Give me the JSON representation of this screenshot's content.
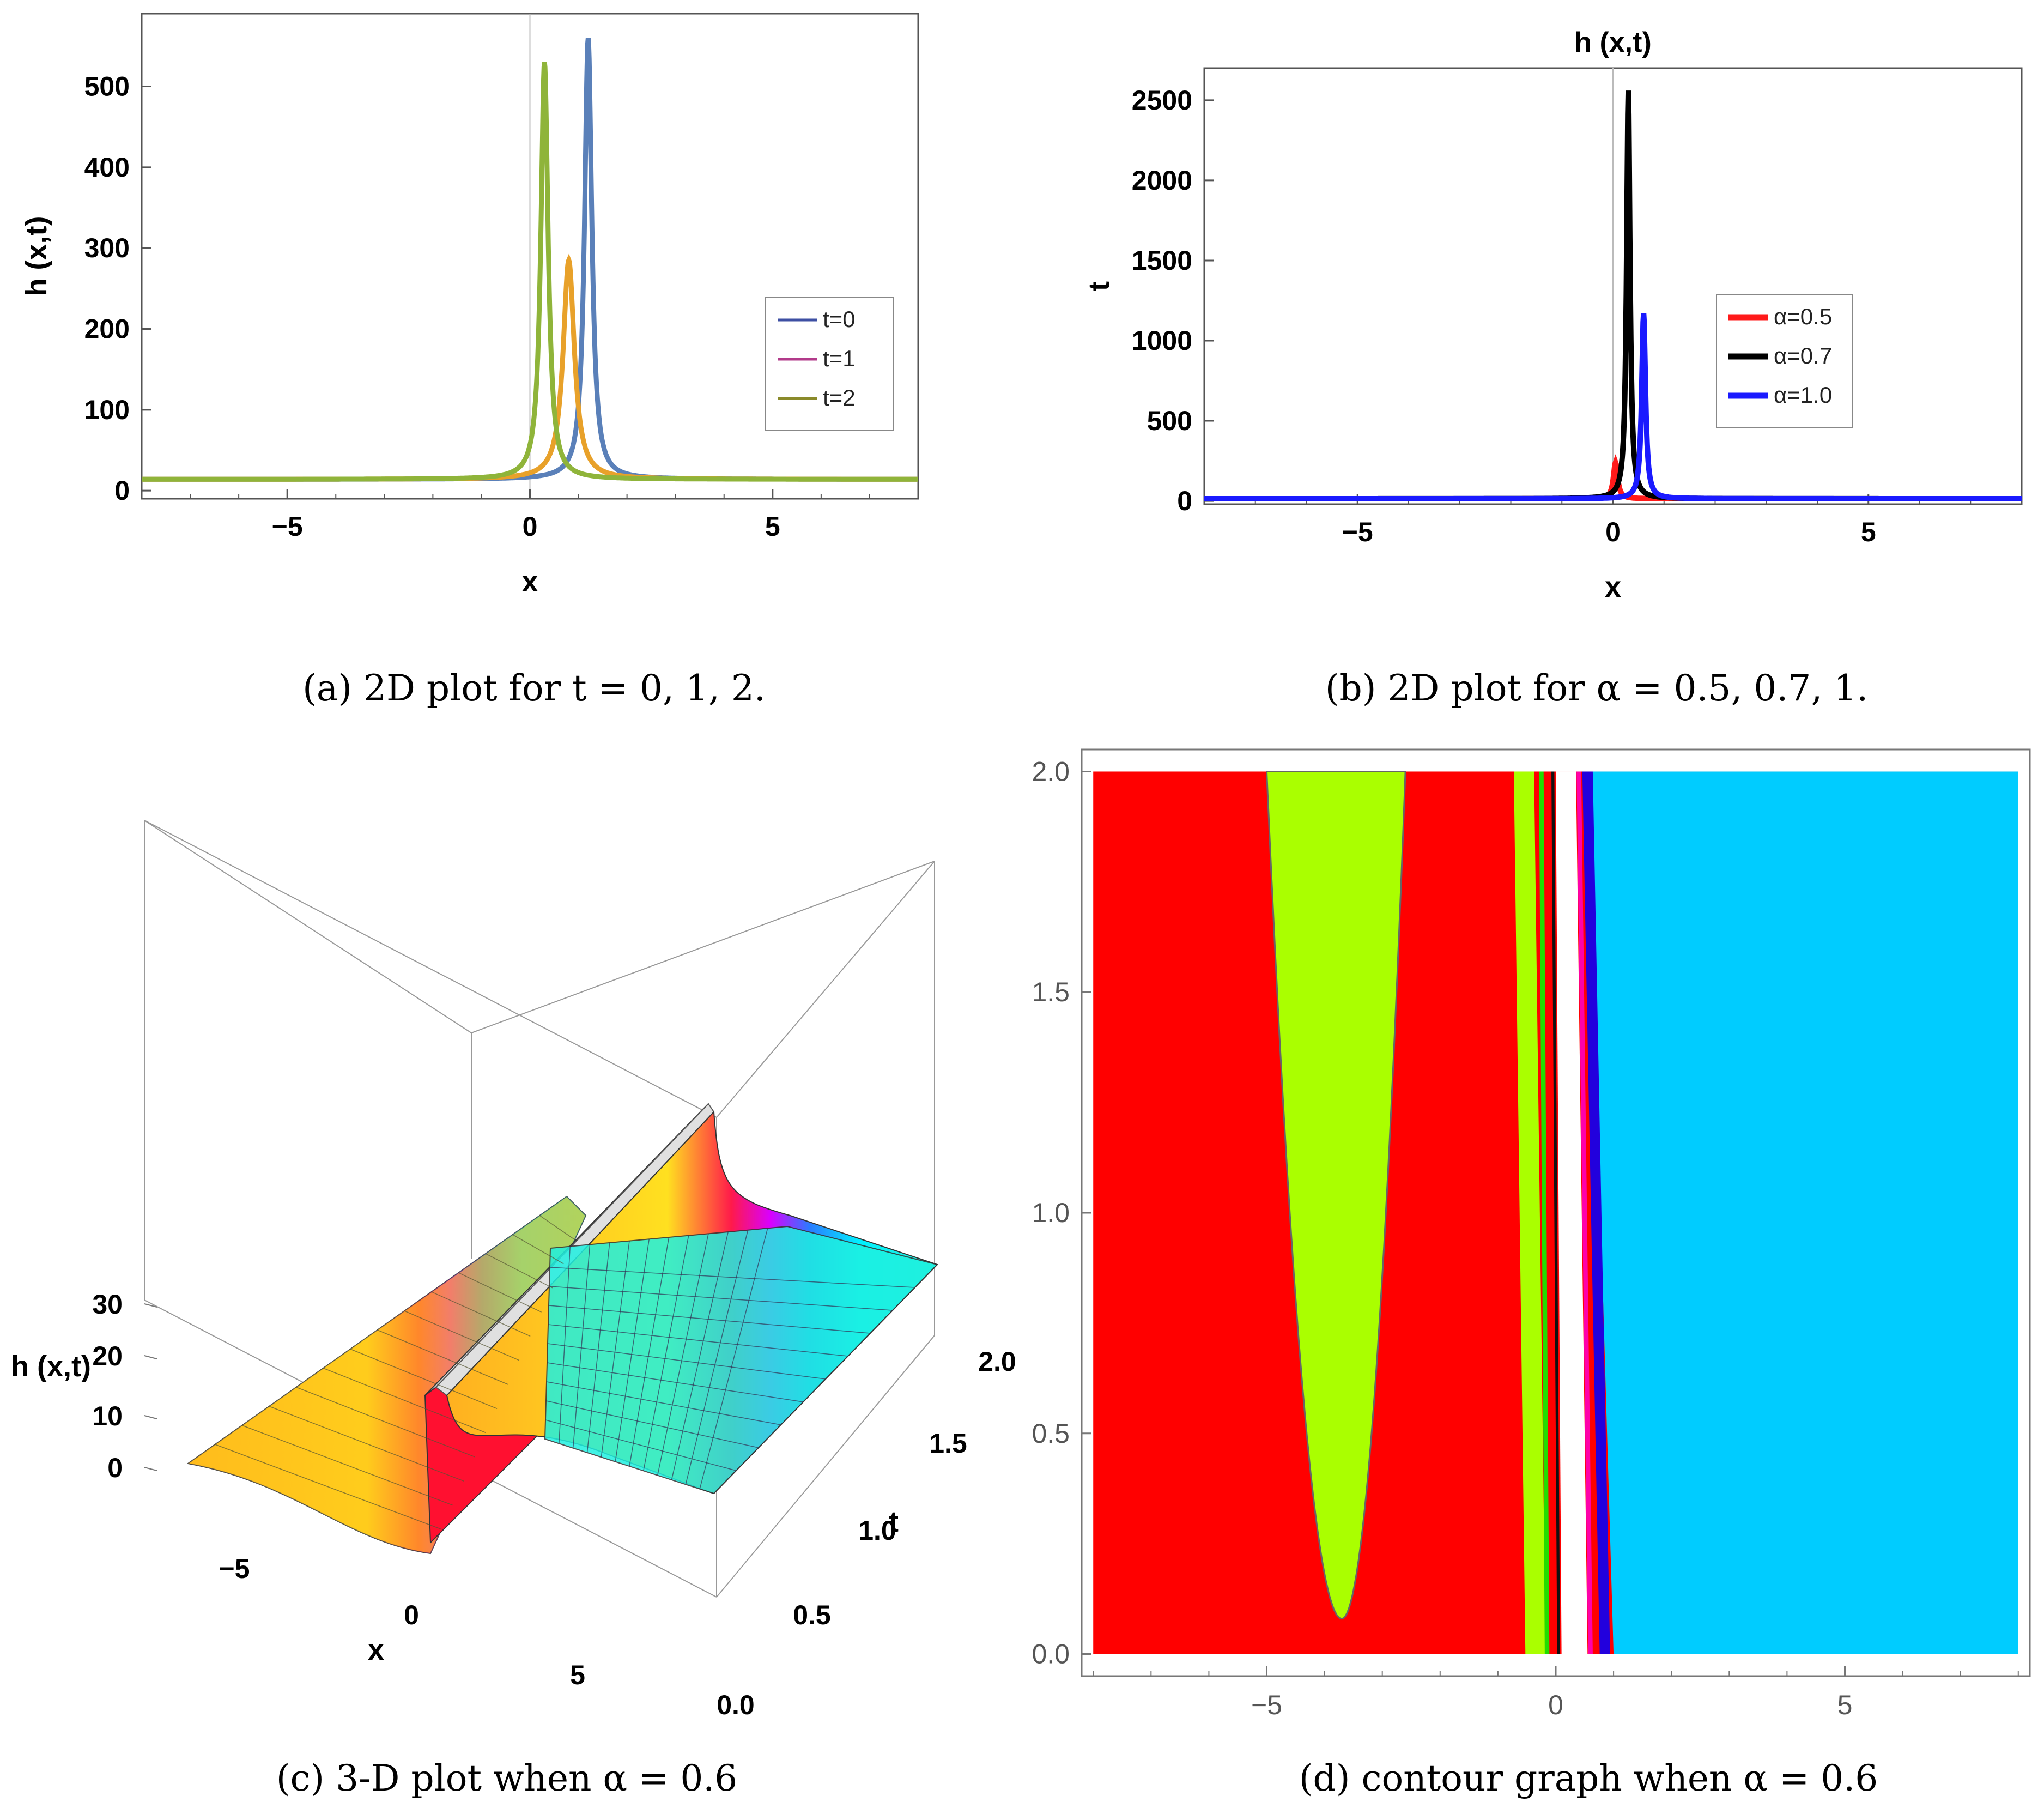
{
  "chart_data": [
    {
      "type": "line",
      "panel": "a",
      "caption": "(a) 2D plot for t = 0, 1, 2.",
      "xlabel": "x",
      "ylabel": "h (x,t)",
      "xlim": [
        -8,
        8
      ],
      "ylim": [
        -10,
        590
      ],
      "xticks": [
        -5,
        0,
        5
      ],
      "yticks": [
        0,
        100,
        200,
        300,
        400,
        500
      ],
      "series": [
        {
          "name": "t=0",
          "color": "#5a80b9",
          "legend_color": "#3d4fa3",
          "peak_x": 1.2,
          "peak_y": 560,
          "width": 0.09,
          "baseline": 14
        },
        {
          "name": "t=1",
          "color": "#e8a12a",
          "legend_color": "#b23a8a",
          "peak_x": 0.8,
          "peak_y": 285,
          "width": 0.14,
          "baseline": 14
        },
        {
          "name": "t=2",
          "color": "#8fb43a",
          "legend_color": "#8a8a2a",
          "peak_x": 0.3,
          "peak_y": 530,
          "width": 0.09,
          "baseline": 14
        }
      ],
      "legend_position": "center-right"
    },
    {
      "type": "line",
      "panel": "b",
      "caption": "(b) 2D plot for α = 0.5, 0.7, 1.",
      "title": "h (x,t)",
      "xlabel": "x",
      "ylabel": "t",
      "xlim": [
        -8,
        8
      ],
      "ylim": [
        -20,
        2700
      ],
      "xticks": [
        -5,
        0,
        5
      ],
      "yticks": [
        0,
        500,
        1000,
        1500,
        2000,
        2500
      ],
      "series": [
        {
          "name": "α=0.5",
          "color": "#ff1a1a",
          "peak_x": 0.05,
          "peak_y": 240,
          "width": 0.05,
          "baseline": 14
        },
        {
          "name": "α=0.7",
          "color": "#000000",
          "peak_x": 0.3,
          "peak_y": 2560,
          "width": 0.04,
          "baseline": 14
        },
        {
          "name": "α=1.0",
          "color": "#1a1aff",
          "peak_x": 0.6,
          "peak_y": 1170,
          "width": 0.045,
          "baseline": 14
        }
      ],
      "legend_position": "center-right"
    },
    {
      "type": "surface3d",
      "panel": "c",
      "caption": "(c) 3-D plot when α = 0.6",
      "xlabel": "x",
      "ylabel": "t",
      "zlabel": "h (x,t)",
      "xticks": [
        -5,
        0,
        5
      ],
      "yticks": [
        "0.0",
        "0.5",
        "1.0",
        "1.5",
        "2.0"
      ],
      "zticks": [
        0,
        10,
        20,
        30
      ]
    },
    {
      "type": "contour",
      "panel": "d",
      "caption": "(d) contour graph when α = 0.6",
      "xlim": [
        -8.2,
        8.2
      ],
      "ylim": [
        -0.05,
        2.05
      ],
      "plot_range": {
        "x": [
          -8,
          8
        ],
        "y": [
          0,
          2
        ]
      },
      "xticks": [
        -5,
        0,
        5
      ],
      "yticks": [
        "0.0",
        "0.5",
        "1.0",
        "1.5",
        "2.0"
      ],
      "region_colors": {
        "left": "#ff0000",
        "parabola": "#aaff00",
        "right": "#00ccff",
        "band_violet": "#2200dd",
        "band_magenta": "#ff00aa",
        "band_green": "#22dd00"
      },
      "parabola": {
        "vertex_x": -3.7,
        "vertex_y": 0.08,
        "left_x_at_top": -5.0,
        "right_x_at_top": -2.6
      },
      "bands": [
        {
          "color": "#aaff00",
          "x_bottom": -0.35,
          "x_top": -0.55,
          "width": 0.35
        },
        {
          "color": "#22dd00",
          "x_bottom": -0.15,
          "x_top": -0.25,
          "width": 0.08
        },
        {
          "color": "#111111",
          "x_bottom": 0.05,
          "x_top": -0.05,
          "width": 0.05
        },
        {
          "color": "#ff00aa",
          "x_bottom": 0.6,
          "x_top": 0.4,
          "width": 0.08
        },
        {
          "color": "#2200dd",
          "x_bottom": 0.85,
          "x_top": 0.55,
          "width": 0.18
        }
      ]
    }
  ]
}
